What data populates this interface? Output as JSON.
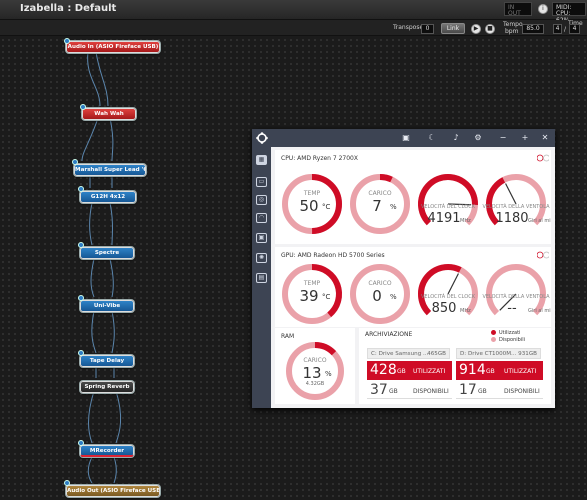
{
  "window": {
    "title": "Izabella : Default"
  },
  "toolbar": {
    "transpose_label": "Transpose",
    "transpose_value": "0",
    "link_label": "Link",
    "tempo_label": "Tempo",
    "bpm_label": "bpm",
    "tempo_value": "85.0",
    "time_label": "Time",
    "time_num": "4",
    "time_sep": "/",
    "time_den": "4"
  },
  "system": {
    "midi_label": "MIDI:",
    "cpu_label": "CPU: 62%",
    "in_label": "IN",
    "out_label": "OUT"
  },
  "nodes": [
    {
      "label": "Audio In (ASIO Fireface USB)"
    },
    {
      "label": "Wah Wah"
    },
    {
      "label": "Marshall Super Lead '68"
    },
    {
      "label": "G12H 4x12"
    },
    {
      "label": "Spectre"
    },
    {
      "label": "Uni-Vibe"
    },
    {
      "label": "Tape Delay"
    },
    {
      "label": "Spring Reverb"
    },
    {
      "label": "MRecorder"
    },
    {
      "label": "Audio Out (ASIO Fireface USB)"
    }
  ],
  "monitor": {
    "cpu": {
      "title": "CPU: AMD Ryzen 7 2700X",
      "temp": {
        "label": "TEMP",
        "value": "50",
        "unit": "°C",
        "fraction": 0.5
      },
      "load": {
        "label": "CARICO",
        "value": "7",
        "unit": "%",
        "fraction": 0.07
      },
      "clock": {
        "label": "VELOCITÀ DEL CLOCK",
        "value": "4191",
        "unit": "MHz",
        "fraction": 0.84
      },
      "fan": {
        "label": "VELOCITÀ DELLA VENTOLA",
        "value": "1180",
        "unit": "Giri al minuto",
        "fraction": 0.4
      }
    },
    "gpu": {
      "title": "GPU: AMD Radeon HD 5700 Series",
      "temp": {
        "label": "TEMP",
        "value": "39",
        "unit": "°C",
        "fraction": 0.39
      },
      "load": {
        "label": "CARICO",
        "value": "0",
        "unit": "%",
        "fraction": 0.0
      },
      "clock": {
        "label": "VELOCITÀ DEL CLOCK",
        "value": "850",
        "unit": "MHz",
        "fraction": 0.6
      },
      "fan": {
        "label": "VELOCITÀ DELLA VENTOLA",
        "value": "--",
        "unit": "Giri al minuto",
        "fraction": 0.0
      }
    },
    "ram": {
      "title": "RAM",
      "label": "CARICO",
      "value": "13",
      "unit": "%",
      "sub": "4.32GB",
      "fraction": 0.13
    },
    "storage": {
      "title": "ARCHIVIAZIONE",
      "legend_used": "Utilizzati",
      "legend_free": "Disponibili",
      "drives": [
        {
          "name": "C: Drive Samsung ...",
          "size": "465GB",
          "used": "428",
          "free": "37",
          "unit": "GB",
          "used_label": "UTILIZZATI",
          "free_label": "DISPONIBILI"
        },
        {
          "name": "D: Drive CT1000M...",
          "size": "931GB",
          "used": "914",
          "free": "17",
          "unit": "GB",
          "used_label": "UTILIZZATI",
          "free_label": "DISPONIBILI"
        }
      ]
    }
  },
  "colors": {
    "accent_red": "#cf0c26",
    "light_red": "#eaa1a9",
    "monitor_dark": "#3d4453",
    "node_blue": "#1e6cb1",
    "node_red": "#c42b2b"
  }
}
